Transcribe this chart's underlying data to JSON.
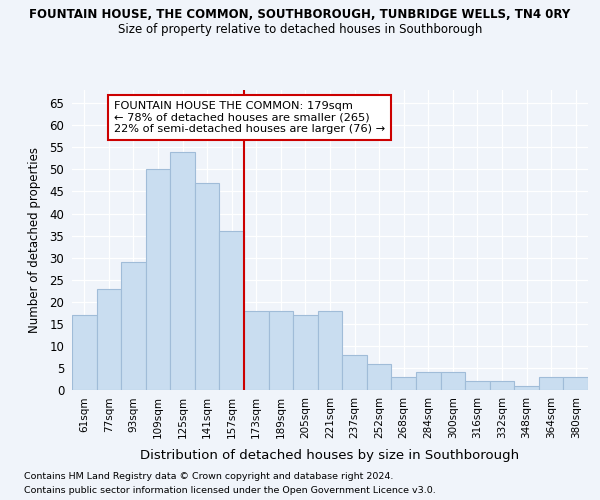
{
  "title1": "FOUNTAIN HOUSE, THE COMMON, SOUTHBOROUGH, TUNBRIDGE WELLS, TN4 0RY",
  "title2": "Size of property relative to detached houses in Southborough",
  "xlabel": "Distribution of detached houses by size in Southborough",
  "ylabel": "Number of detached properties",
  "categories": [
    "61sqm",
    "77sqm",
    "93sqm",
    "109sqm",
    "125sqm",
    "141sqm",
    "157sqm",
    "173sqm",
    "189sqm",
    "205sqm",
    "221sqm",
    "237sqm",
    "252sqm",
    "268sqm",
    "284sqm",
    "300sqm",
    "316sqm",
    "332sqm",
    "348sqm",
    "364sqm",
    "380sqm"
  ],
  "values": [
    17,
    23,
    29,
    50,
    54,
    47,
    36,
    18,
    18,
    17,
    18,
    8,
    6,
    3,
    4,
    4,
    2,
    2,
    1,
    3,
    3
  ],
  "bar_color": "#c9ddf0",
  "bar_edge_color": "#a0bcd8",
  "vline_index": 7,
  "vline_color": "#cc0000",
  "ylim_max": 68,
  "yticks": [
    0,
    5,
    10,
    15,
    20,
    25,
    30,
    35,
    40,
    45,
    50,
    55,
    60,
    65
  ],
  "annotation_line1": "FOUNTAIN HOUSE THE COMMON: 179sqm",
  "annotation_line2": "← 78% of detached houses are smaller (265)",
  "annotation_line3": "22% of semi-detached houses are larger (76) →",
  "annotation_box_fc": "#ffffff",
  "annotation_box_ec": "#cc0000",
  "footer1": "Contains HM Land Registry data © Crown copyright and database right 2024.",
  "footer2": "Contains public sector information licensed under the Open Government Licence v3.0.",
  "bg_color": "#f0f4fa",
  "grid_color": "#ffffff"
}
